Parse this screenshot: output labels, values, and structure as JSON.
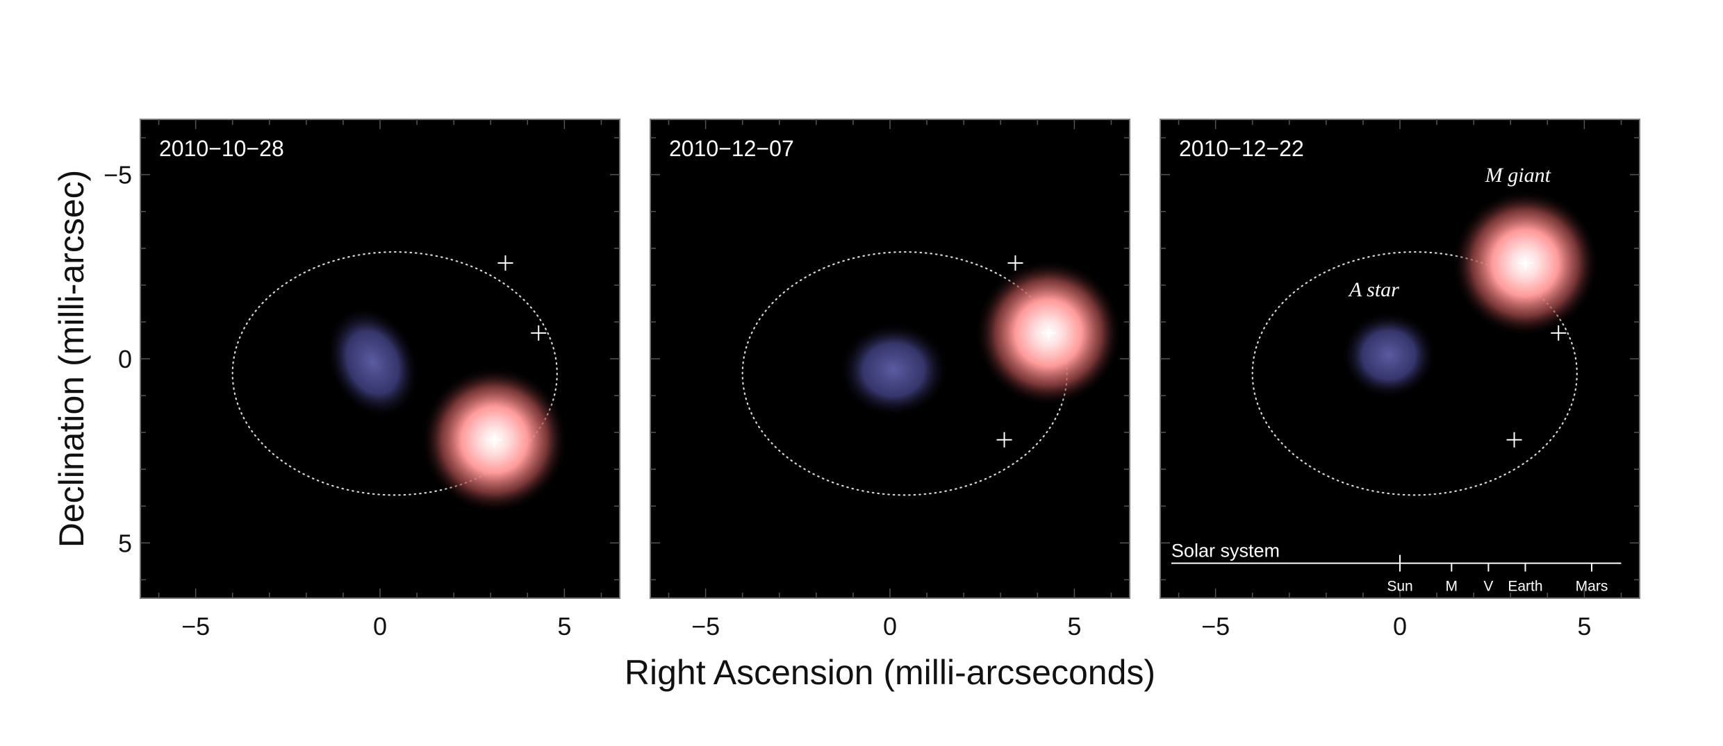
{
  "figure": {
    "ylabel": "Declination (milli-arcsec)",
    "xlabel": "Right Ascension (milli-arcseconds)"
  },
  "colors": {
    "background": "#ffffff",
    "panel_bg": "#000000",
    "a_star": "#5a5a9e",
    "m_giant": "#ff8c8c",
    "orbit": "#d9d9d9"
  },
  "chart_data": {
    "type": "scatter",
    "xlim": [
      -6.5,
      6.5
    ],
    "ylim": [
      -6.5,
      6.5
    ],
    "y_inverted": true,
    "xticks": [
      -5,
      0,
      5
    ],
    "yticks": [
      -5,
      0,
      5
    ],
    "xtick_labels": [
      "−5",
      "0",
      "5"
    ],
    "ytick_labels": [
      "−5",
      "0",
      "5"
    ],
    "grid": false,
    "orbit": {
      "cx": 0.4,
      "cy": 0.4,
      "rx": 4.4,
      "ry": 3.3
    },
    "crosses": [
      {
        "x": 3.4,
        "y": -2.6
      },
      {
        "x": 4.3,
        "y": -0.7
      },
      {
        "x": 3.1,
        "y": 2.2
      }
    ],
    "panels": [
      {
        "date": "2010−10−28",
        "a_star": {
          "x": -0.2,
          "y": 0.1,
          "rx": 1.2,
          "ry": 1.6,
          "rot": -25
        },
        "m_giant": {
          "x": 3.1,
          "y": 2.2,
          "r": 2.0
        }
      },
      {
        "date": "2010−12−07",
        "a_star": {
          "x": 0.1,
          "y": 0.3,
          "rx": 1.5,
          "ry": 1.3,
          "rot": 0
        },
        "m_giant": {
          "x": 4.3,
          "y": -0.7,
          "r": 2.0
        }
      },
      {
        "date": "2010−12−22",
        "a_star": {
          "x": -0.3,
          "y": -0.1,
          "rx": 1.3,
          "ry": 1.2,
          "rot": 0
        },
        "m_giant": {
          "x": 3.4,
          "y": -2.6,
          "r": 2.0
        },
        "labels": {
          "a_star": "A star",
          "m_giant": "M giant"
        },
        "solar_system": {
          "title": "Solar system",
          "planets": [
            {
              "name": "Sun",
              "x": 0
            },
            {
              "name": "M",
              "x": 1.4
            },
            {
              "name": "V",
              "x": 2.4
            },
            {
              "name": "Earth",
              "x": 3.4
            },
            {
              "name": "Mars",
              "x": 5.2
            }
          ]
        }
      }
    ]
  }
}
